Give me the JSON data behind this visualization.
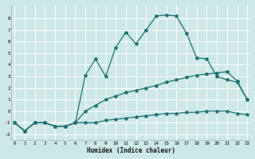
{
  "xlabel": "Humidex (Indice chaleur)",
  "bg_color": "#cce8e8",
  "grid_color": "#ffffff",
  "line_color": "#1a7070",
  "line1_x": [
    0,
    1,
    2,
    3,
    4,
    5,
    6,
    7,
    8,
    9,
    10,
    11,
    12,
    13,
    14,
    15,
    16,
    17,
    18,
    19,
    20,
    21,
    22,
    23
  ],
  "line1_y": [
    -1,
    -1.7,
    -1,
    -1,
    -1.3,
    -1.3,
    -1,
    -1,
    -1,
    -0.8,
    -0.7,
    -0.6,
    -0.5,
    -0.4,
    -0.3,
    -0.2,
    -0.2,
    -0.1,
    -0.1,
    0.0,
    0.0,
    0.0,
    -0.2,
    -0.3
  ],
  "line2_x": [
    0,
    1,
    2,
    3,
    4,
    5,
    6,
    7,
    8,
    9,
    10,
    11,
    12,
    13,
    14,
    15,
    16,
    17,
    18,
    19,
    20,
    21,
    22,
    23
  ],
  "line2_y": [
    -1,
    -1.7,
    -1,
    -1,
    -1.3,
    -1.3,
    -1,
    0.0,
    0.5,
    1.0,
    1.3,
    1.6,
    1.8,
    2.0,
    2.2,
    2.5,
    2.7,
    2.9,
    3.1,
    3.2,
    3.3,
    3.4,
    2.6,
    1.0
  ],
  "line3_x": [
    0,
    1,
    2,
    3,
    4,
    5,
    6,
    7,
    8,
    9,
    10,
    11,
    12,
    13,
    14,
    15,
    16,
    17,
    18,
    19,
    20,
    21,
    22,
    23
  ],
  "line3_y": [
    -1,
    -1.7,
    -1,
    -1,
    -1.3,
    -1.3,
    -1,
    3.1,
    4.5,
    3.0,
    5.5,
    6.8,
    5.8,
    7.0,
    8.2,
    8.3,
    8.2,
    6.7,
    4.6,
    4.5,
    3.0,
    2.7,
    2.5,
    1.0
  ],
  "ylim": [
    -2.5,
    9.2
  ],
  "xlim": [
    -0.3,
    23.3
  ],
  "yticks": [
    -2,
    -1,
    0,
    1,
    2,
    3,
    4,
    5,
    6,
    7,
    8
  ],
  "xticks": [
    0,
    1,
    2,
    3,
    4,
    5,
    6,
    7,
    8,
    9,
    10,
    11,
    12,
    13,
    14,
    15,
    16,
    17,
    18,
    19,
    20,
    21,
    22,
    23
  ]
}
